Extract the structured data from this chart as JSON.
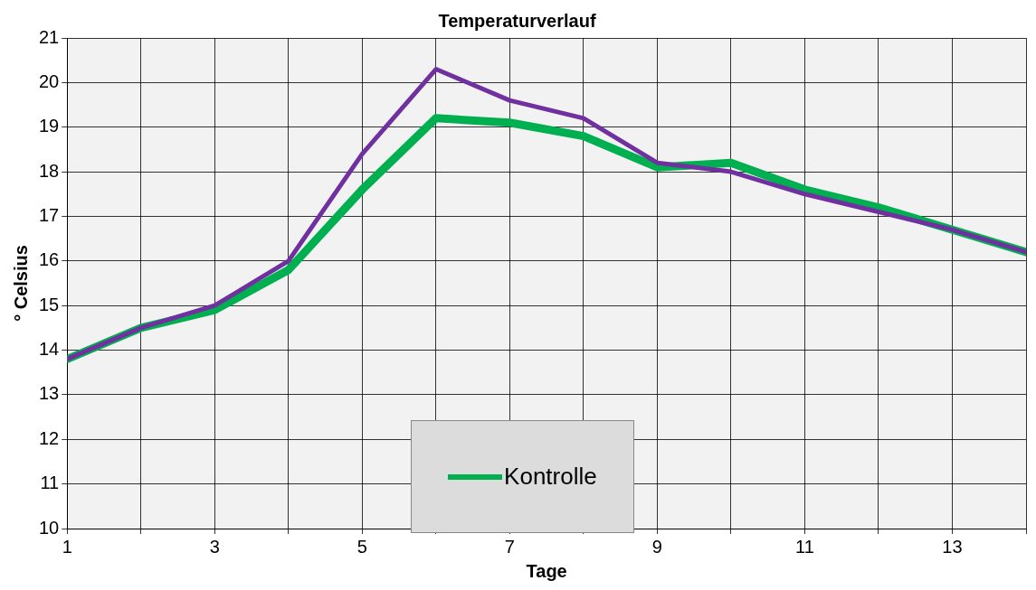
{
  "chart_data": {
    "type": "line",
    "title": "Temperaturverlauf",
    "xlabel": "Tage",
    "ylabel": "° Celsius",
    "x": [
      1,
      2,
      3,
      4,
      5,
      6,
      7,
      8,
      9,
      10,
      11,
      12,
      13,
      14
    ],
    "series": [
      {
        "name": "Kontrolle",
        "color": "#00b050",
        "values": [
          13.8,
          14.5,
          14.9,
          15.8,
          17.6,
          19.2,
          19.1,
          18.8,
          18.1,
          18.2,
          17.6,
          17.2,
          16.7,
          16.2
        ]
      },
      {
        "color": "#7030a0",
        "values": [
          13.8,
          14.5,
          15.0,
          16.0,
          18.4,
          20.3,
          19.6,
          19.2,
          18.2,
          18.0,
          17.5,
          17.1,
          16.7,
          16.2
        ]
      }
    ],
    "xlim": [
      1,
      14
    ],
    "xticks": [
      1,
      {
        "value": 2,
        "label": null
      },
      3,
      {
        "value": 4,
        "label": null
      },
      5,
      {
        "value": 6,
        "label": null
      },
      7,
      {
        "value": 8,
        "label": null
      },
      9,
      {
        "value": 10,
        "label": null
      },
      11,
      {
        "value": 12,
        "label": null
      },
      13,
      {
        "value": 14,
        "label": null
      }
    ],
    "ylim": [
      10,
      21
    ],
    "yticks": [
      10,
      11,
      12,
      13,
      14,
      15,
      16,
      17,
      18,
      19,
      20,
      21
    ],
    "grid": true,
    "legend": "bottom",
    "marker": "none",
    "line_style": "solid"
  }
}
